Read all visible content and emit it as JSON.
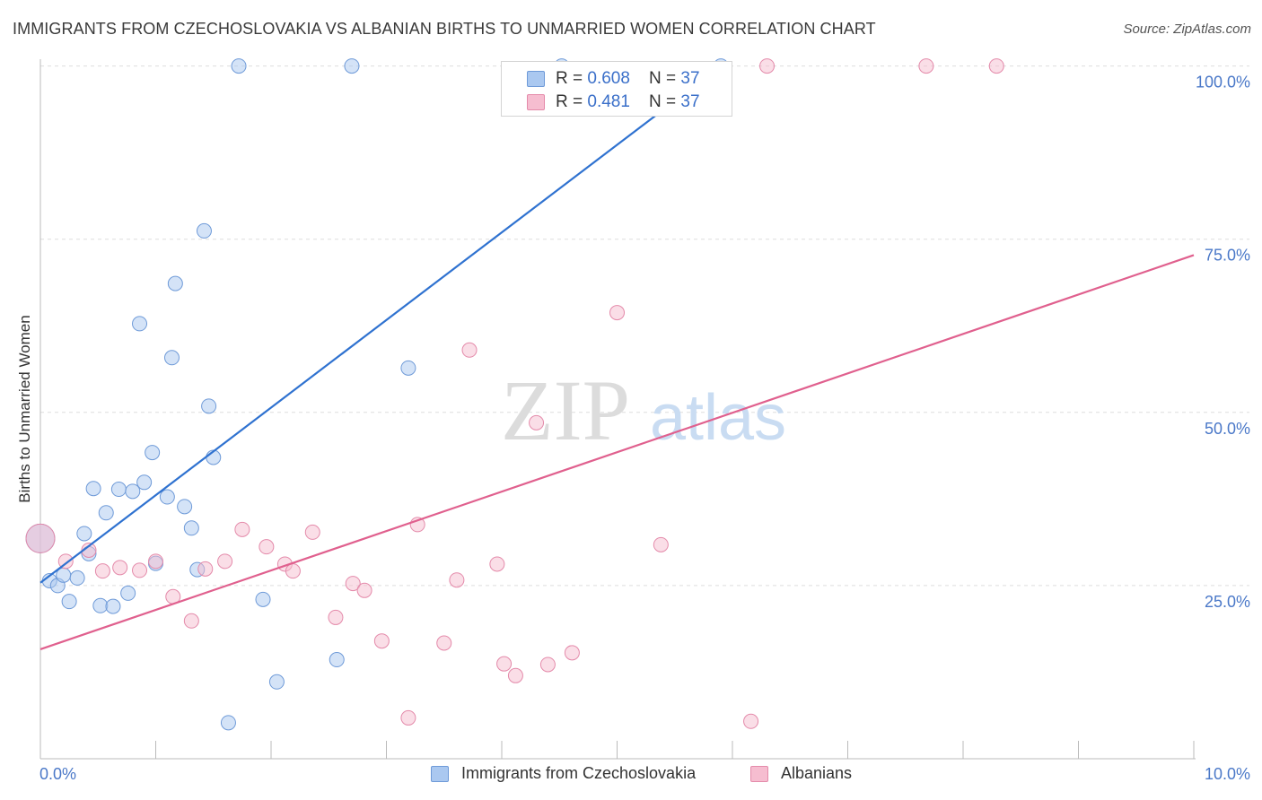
{
  "header": {
    "title": "IMMIGRANTS FROM CZECHOSLOVAKIA VS ALBANIAN BIRTHS TO UNMARRIED WOMEN CORRELATION CHART",
    "source": "Source: ZipAtlas.com"
  },
  "watermark": {
    "zip": "ZIP",
    "atlas": "atlas"
  },
  "legend": {
    "rows": [
      {
        "r_label": "R = ",
        "r_value": "0.608",
        "n_label": "N = ",
        "n_value": "37"
      },
      {
        "r_label": "R = ",
        "r_value": "0.481",
        "n_label": "N = ",
        "n_value": "37"
      }
    ]
  },
  "bottom_legend": {
    "series1": "Immigrants from Czechoslovakia",
    "series2": "Albanians"
  },
  "chart_data": {
    "type": "scatter",
    "title": "IMMIGRANTS FROM CZECHOSLOVAKIA VS ALBANIAN BIRTHS TO UNMARRIED WOMEN CORRELATION CHART",
    "xlabel": "",
    "ylabel": "Births to Unmarried Women",
    "xlim": [
      0,
      10
    ],
    "ylim": [
      0,
      101.5
    ],
    "x_tick_labels": [
      "0.0%",
      "10.0%"
    ],
    "y_ticks": [
      25,
      50,
      75,
      100
    ],
    "y_tick_labels": [
      "25.0%",
      "50.0%",
      "75.0%",
      "100.0%"
    ],
    "grid": true,
    "colors": {
      "series1_fill": "#aac8f0",
      "series1_stroke": "#6e9ad8",
      "series1_line": "#2f72d0",
      "series2_fill": "#f6bdd0",
      "series2_stroke": "#e48aaa",
      "series2_line": "#e0608e",
      "axis_text": "#4a78c8",
      "grid": "#dddddd"
    },
    "series": [
      {
        "name": "Immigrants from Czechoslovakia",
        "r": 0.608,
        "n": 37,
        "trend": {
          "x0": 0.0,
          "y0": 25.4,
          "x1": 5.9,
          "y1": 100.0
        },
        "points": [
          {
            "x": 0.0,
            "y": 31.8,
            "big": true
          },
          {
            "x": 0.08,
            "y": 25.7
          },
          {
            "x": 0.15,
            "y": 25.0
          },
          {
            "x": 0.2,
            "y": 26.5
          },
          {
            "x": 0.25,
            "y": 22.7
          },
          {
            "x": 0.32,
            "y": 26.1
          },
          {
            "x": 0.38,
            "y": 32.5
          },
          {
            "x": 0.42,
            "y": 29.6
          },
          {
            "x": 0.46,
            "y": 39.0
          },
          {
            "x": 0.52,
            "y": 22.1
          },
          {
            "x": 0.57,
            "y": 35.5
          },
          {
            "x": 0.63,
            "y": 22.0
          },
          {
            "x": 0.68,
            "y": 38.9
          },
          {
            "x": 0.76,
            "y": 23.9
          },
          {
            "x": 0.8,
            "y": 38.6
          },
          {
            "x": 0.86,
            "y": 62.8
          },
          {
            "x": 0.9,
            "y": 39.9
          },
          {
            "x": 0.97,
            "y": 44.2
          },
          {
            "x": 1.0,
            "y": 28.2
          },
          {
            "x": 1.1,
            "y": 37.8
          },
          {
            "x": 1.14,
            "y": 57.9
          },
          {
            "x": 1.17,
            "y": 68.6
          },
          {
            "x": 1.25,
            "y": 36.4
          },
          {
            "x": 1.31,
            "y": 33.3
          },
          {
            "x": 1.36,
            "y": 27.3
          },
          {
            "x": 1.42,
            "y": 76.2
          },
          {
            "x": 1.46,
            "y": 50.9
          },
          {
            "x": 1.5,
            "y": 43.5
          },
          {
            "x": 1.63,
            "y": 5.2
          },
          {
            "x": 1.72,
            "y": 100.0
          },
          {
            "x": 1.93,
            "y": 23.0
          },
          {
            "x": 2.05,
            "y": 11.1
          },
          {
            "x": 2.57,
            "y": 14.3
          },
          {
            "x": 2.7,
            "y": 100.0
          },
          {
            "x": 3.19,
            "y": 56.4
          },
          {
            "x": 4.52,
            "y": 100.0
          },
          {
            "x": 5.9,
            "y": 100.0
          }
        ]
      },
      {
        "name": "Albanians",
        "r": 0.481,
        "n": 37,
        "trend": {
          "x0": 0.0,
          "y0": 15.8,
          "x1": 10.0,
          "y1": 72.7
        },
        "points": [
          {
            "x": 0.0,
            "y": 31.8,
            "big": true
          },
          {
            "x": 0.22,
            "y": 28.5
          },
          {
            "x": 0.42,
            "y": 30.1
          },
          {
            "x": 0.54,
            "y": 27.1
          },
          {
            "x": 0.69,
            "y": 27.6
          },
          {
            "x": 0.86,
            "y": 27.2
          },
          {
            "x": 1.0,
            "y": 28.5
          },
          {
            "x": 1.15,
            "y": 23.4
          },
          {
            "x": 1.31,
            "y": 19.9
          },
          {
            "x": 1.43,
            "y": 27.4
          },
          {
            "x": 1.6,
            "y": 28.5
          },
          {
            "x": 1.75,
            "y": 33.1
          },
          {
            "x": 1.96,
            "y": 30.6
          },
          {
            "x": 2.12,
            "y": 28.1
          },
          {
            "x": 2.19,
            "y": 27.1
          },
          {
            "x": 2.36,
            "y": 32.7
          },
          {
            "x": 2.56,
            "y": 20.4
          },
          {
            "x": 2.71,
            "y": 25.3
          },
          {
            "x": 2.81,
            "y": 24.3
          },
          {
            "x": 2.96,
            "y": 17.0
          },
          {
            "x": 3.19,
            "y": 5.9
          },
          {
            "x": 3.27,
            "y": 33.8
          },
          {
            "x": 3.5,
            "y": 16.7
          },
          {
            "x": 3.61,
            "y": 25.8
          },
          {
            "x": 3.72,
            "y": 59.0
          },
          {
            "x": 3.96,
            "y": 28.1
          },
          {
            "x": 4.02,
            "y": 13.7
          },
          {
            "x": 4.12,
            "y": 12.0
          },
          {
            "x": 4.3,
            "y": 48.5
          },
          {
            "x": 4.4,
            "y": 13.6
          },
          {
            "x": 4.61,
            "y": 15.3
          },
          {
            "x": 5.0,
            "y": 64.4
          },
          {
            "x": 5.38,
            "y": 30.9
          },
          {
            "x": 6.16,
            "y": 5.4
          },
          {
            "x": 7.68,
            "y": 100.0
          },
          {
            "x": 8.29,
            "y": 100.0
          },
          {
            "x": 6.3,
            "y": 100.0
          }
        ]
      }
    ]
  }
}
